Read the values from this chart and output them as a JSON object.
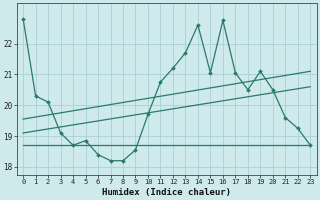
{
  "xlabel": "Humidex (Indice chaleur)",
  "x_values": [
    0,
    1,
    2,
    3,
    4,
    5,
    6,
    7,
    8,
    9,
    10,
    11,
    12,
    13,
    14,
    15,
    16,
    17,
    18,
    19,
    20,
    21,
    22,
    23
  ],
  "main_line": [
    22.8,
    20.3,
    20.1,
    19.1,
    18.7,
    18.85,
    18.4,
    18.2,
    18.2,
    18.55,
    19.7,
    20.75,
    21.2,
    21.7,
    22.6,
    21.05,
    22.75,
    21.05,
    20.5,
    21.1,
    20.5,
    19.6,
    19.25,
    18.7
  ],
  "trend_line1_x": [
    0,
    23
  ],
  "trend_line1_y": [
    18.7,
    18.7
  ],
  "trend_line2_x": [
    0,
    23
  ],
  "trend_line2_y": [
    19.1,
    20.6
  ],
  "trend_line3_x": [
    0,
    23
  ],
  "trend_line3_y": [
    19.55,
    21.1
  ],
  "line_color": "#2a7a6a",
  "bg_color": "#ceeaec",
  "grid_color": "#aacfd4",
  "ylim": [
    17.75,
    23.3
  ],
  "xlim": [
    -0.5,
    23.5
  ],
  "yticks": [
    18,
    19,
    20,
    21,
    22
  ],
  "xticks": [
    0,
    1,
    2,
    3,
    4,
    5,
    6,
    7,
    8,
    9,
    10,
    11,
    12,
    13,
    14,
    15,
    16,
    17,
    18,
    19,
    20,
    21,
    22,
    23
  ],
  "tick_fontsize": 5.0,
  "xlabel_fontsize": 6.5
}
